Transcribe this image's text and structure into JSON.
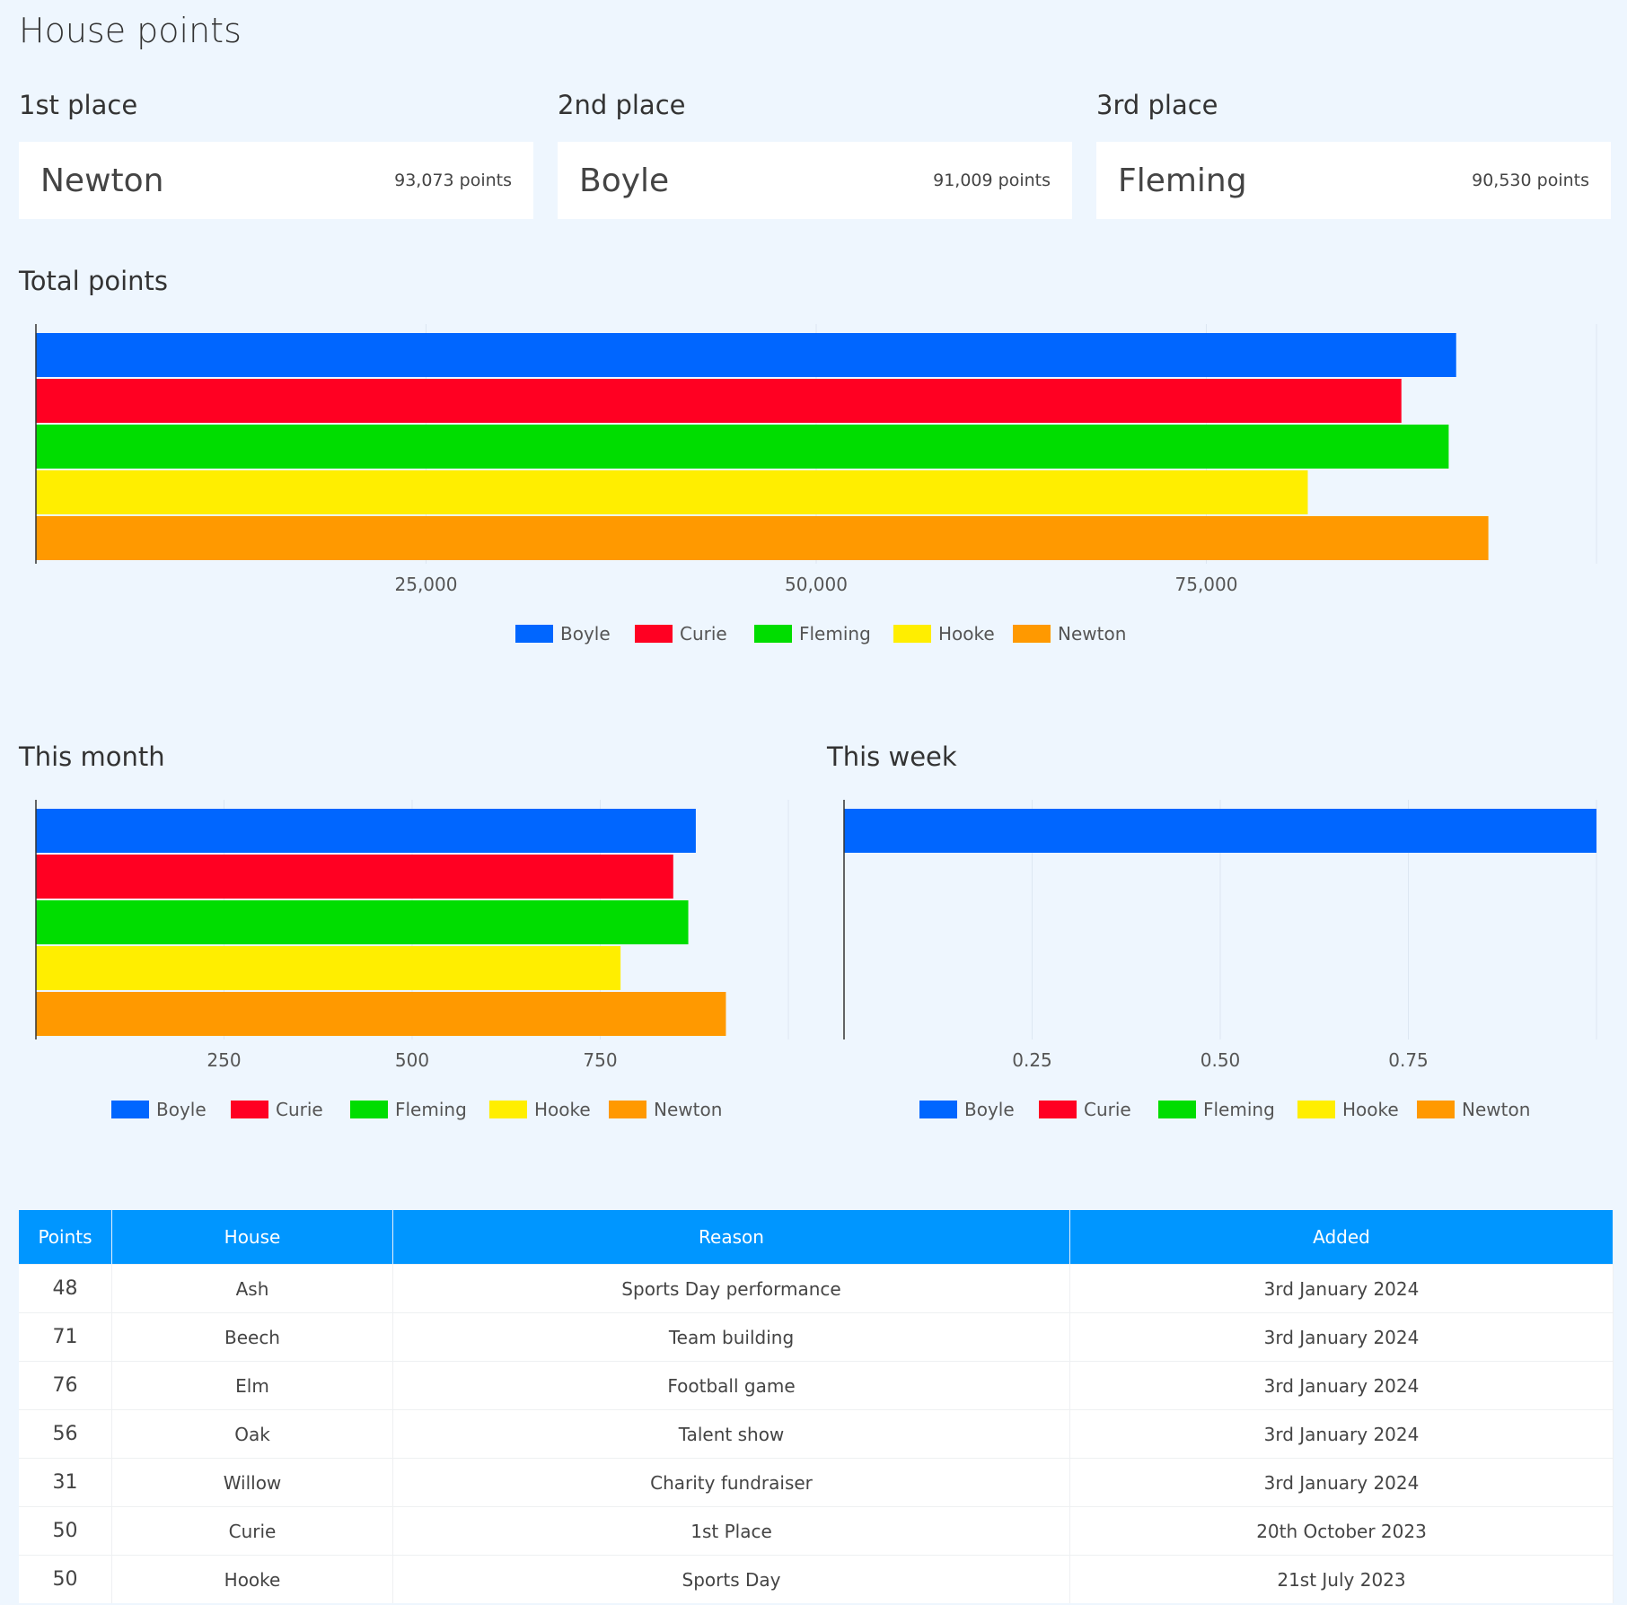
{
  "page": {
    "title": "House points"
  },
  "places": [
    {
      "label": "1st place",
      "house": "Newton",
      "points": "93,073 points"
    },
    {
      "label": "2nd place",
      "house": "Boyle",
      "points": "91,009 points"
    },
    {
      "label": "3rd place",
      "house": "Fleming",
      "points": "90,530 points"
    }
  ],
  "sections": {
    "total": "Total points",
    "month": "This month",
    "week": "This week"
  },
  "colors": {
    "Boyle": "#0066ff",
    "Curie": "#ff0022",
    "Fleming": "#00dd00",
    "Hooke": "#ffee00",
    "Newton": "#ff9900"
  },
  "chart_data": [
    {
      "type": "bar",
      "orientation": "horizontal",
      "title": "Total points",
      "series": [
        {
          "name": "Boyle",
          "value": 91009
        },
        {
          "name": "Curie",
          "value": 87500
        },
        {
          "name": "Fleming",
          "value": 90530
        },
        {
          "name": "Hooke",
          "value": 81500
        },
        {
          "name": "Newton",
          "value": 93073
        }
      ],
      "xlim": [
        0,
        100000
      ],
      "ticks": [
        25000,
        50000,
        75000
      ],
      "tick_labels": [
        "25,000",
        "50,000",
        "75,000"
      ],
      "legend": "bottom",
      "grid": true
    },
    {
      "type": "bar",
      "orientation": "horizontal",
      "title": "This month",
      "series": [
        {
          "name": "Boyle",
          "value": 877
        },
        {
          "name": "Curie",
          "value": 847
        },
        {
          "name": "Fleming",
          "value": 867
        },
        {
          "name": "Hooke",
          "value": 777
        },
        {
          "name": "Newton",
          "value": 917
        }
      ],
      "xlim": [
        0,
        1000
      ],
      "ticks": [
        250,
        500,
        750
      ],
      "tick_labels": [
        "250",
        "500",
        "750"
      ],
      "legend": "bottom",
      "grid": true
    },
    {
      "type": "bar",
      "orientation": "horizontal",
      "title": "This week",
      "series": [
        {
          "name": "Boyle",
          "value": 1
        },
        {
          "name": "Curie",
          "value": 0
        },
        {
          "name": "Fleming",
          "value": 0
        },
        {
          "name": "Hooke",
          "value": 0
        },
        {
          "name": "Newton",
          "value": 0
        }
      ],
      "xlim": [
        0,
        1
      ],
      "ticks": [
        0.25,
        0.5,
        0.75
      ],
      "tick_labels": [
        "0.25",
        "0.50",
        "0.75"
      ],
      "legend": "bottom",
      "grid": true
    }
  ],
  "table": {
    "headers": [
      "Points",
      "House",
      "Reason",
      "Added"
    ],
    "rows": [
      [
        "48",
        "Ash",
        "Sports Day performance",
        "3rd January 2024"
      ],
      [
        "71",
        "Beech",
        "Team building",
        "3rd January 2024"
      ],
      [
        "76",
        "Elm",
        "Football game",
        "3rd January 2024"
      ],
      [
        "56",
        "Oak",
        "Talent show",
        "3rd January 2024"
      ],
      [
        "31",
        "Willow",
        "Charity fundraiser",
        "3rd January 2024"
      ],
      [
        "50",
        "Curie",
        "1st Place",
        "20th October 2023"
      ],
      [
        "50",
        "Hooke",
        "Sports Day",
        "21st July 2023"
      ]
    ]
  }
}
